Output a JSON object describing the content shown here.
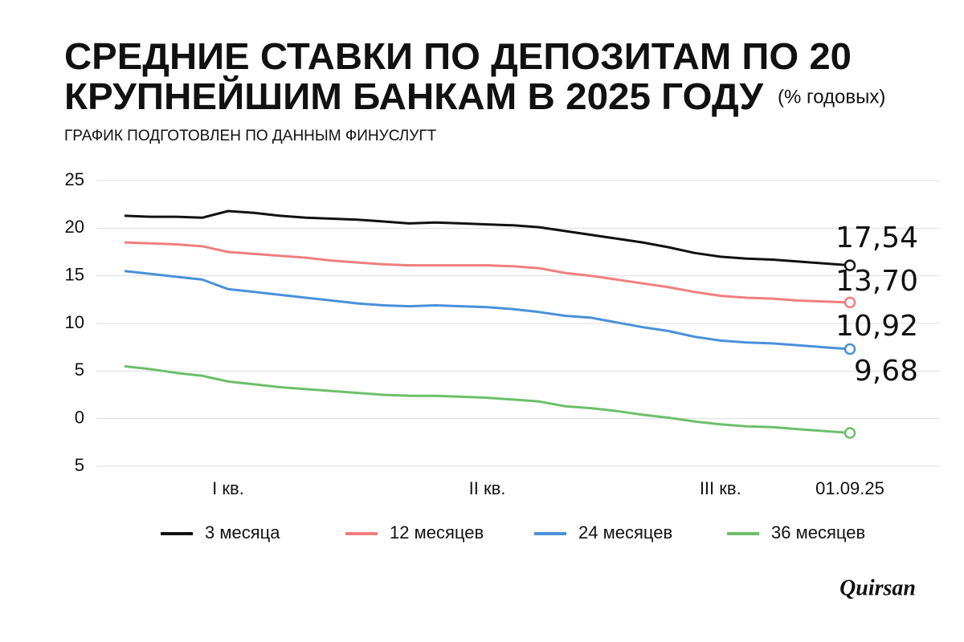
{
  "chart_data": {
    "type": "line",
    "title": [
      "СРЕДНИЕ СТАВКИ ПО ДЕПОЗИТАМ ПО 20",
      "КРУПНЕЙШИМ БАНКАМ В 2025 ГОДУ"
    ],
    "title_note": "(% годовых)",
    "subtitle": "ГРАФИК ПОДГОТОВЛЕН ПО ДАННЫМ ФИНУСЛУГТ",
    "brand": "Quirsan",
    "categories": [
      null,
      null,
      null,
      null,
      "I кв.",
      null,
      null,
      null,
      null,
      null,
      null,
      null,
      null,
      null,
      "II кв.",
      null,
      null,
      null,
      null,
      null,
      null,
      null,
      null,
      "III кв.",
      null,
      null,
      null,
      null,
      "01.09.25"
    ],
    "ylim": [
      -5,
      25
    ],
    "yticks": [
      25,
      20,
      15,
      10,
      5,
      0,
      {
        "value": -5,
        "label": "5"
      }
    ],
    "grid": true,
    "series": [
      {
        "name": "3 месяца",
        "color": "#111111",
        "values": [
          21.3,
          21.2,
          21.2,
          21.1,
          21.8,
          21.6,
          21.3,
          21.1,
          21.0,
          20.9,
          20.7,
          20.5,
          20.6,
          20.5,
          20.4,
          20.3,
          20.1,
          19.7,
          19.3,
          18.9,
          18.5,
          18.0,
          17.4,
          17.0,
          16.8,
          16.7,
          16.5,
          16.3,
          16.1
        ]
      },
      {
        "name": "12 месяцев",
        "color": "#f07f7f",
        "values": [
          18.5,
          18.4,
          18.3,
          18.1,
          17.5,
          17.3,
          17.1,
          16.9,
          16.6,
          16.4,
          16.2,
          16.1,
          16.1,
          16.1,
          16.1,
          16.0,
          15.8,
          15.3,
          15.0,
          14.6,
          14.2,
          13.8,
          13.3,
          12.9,
          12.7,
          12.6,
          12.4,
          12.3,
          12.2
        ]
      },
      {
        "name": "24 месяцев",
        "color": "#4a90d9",
        "values": [
          15.5,
          15.2,
          14.9,
          14.6,
          13.6,
          13.3,
          13.0,
          12.7,
          12.4,
          12.1,
          11.9,
          11.8,
          11.9,
          11.8,
          11.7,
          11.5,
          11.2,
          10.8,
          10.6,
          10.1,
          9.6,
          9.2,
          8.6,
          8.2,
          8.0,
          7.9,
          7.7,
          7.5,
          7.3
        ]
      },
      {
        "name": "36 месяцев",
        "color": "#6cbf6a",
        "values": [
          5.5,
          5.2,
          4.8,
          4.5,
          3.9,
          3.6,
          3.3,
          3.1,
          2.9,
          2.7,
          2.5,
          2.4,
          2.4,
          2.3,
          2.2,
          2.0,
          1.8,
          1.3,
          1.1,
          0.8,
          0.4,
          0.1,
          -0.3,
          -0.6,
          -0.8,
          -0.9,
          -1.1,
          -1.3,
          -1.5
        ]
      }
    ],
    "annotations": [
      "17,54",
      "13,70",
      "10,92",
      "9,68"
    ]
  }
}
